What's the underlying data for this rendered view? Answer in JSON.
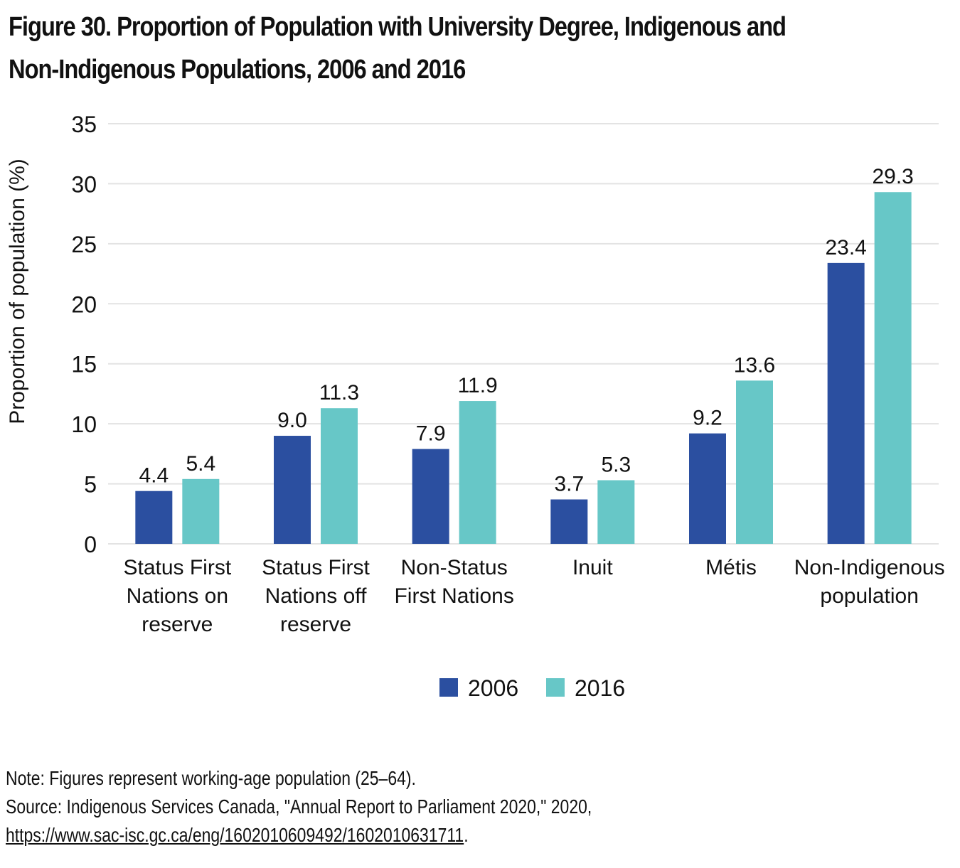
{
  "title": {
    "line1": "Figure 30. Proportion of Population with University Degree, Indigenous and",
    "line2": "Non-Indigenous Populations, 2006 and 2016"
  },
  "notes": {
    "note": "Note: Figures represent working-age population (25–64).",
    "source": "Source: Indigenous Services Canada, \"Annual Report to Parliament 2020,\" 2020,",
    "link": "https://www.sac-isc.gc.ca/eng/1602010609492/1602010631711",
    "link_suffix": "."
  },
  "colors": {
    "series_2006": "#2b4fa0",
    "series_2016": "#67c7c7",
    "grid": "#e3e3e3"
  },
  "chart_data": {
    "type": "bar",
    "title": "Figure 30. Proportion of Population with University Degree, Indigenous and Non-Indigenous Populations, 2006 and 2016",
    "xlabel": "",
    "ylabel": "Proportion of population (%)",
    "ylim": [
      0,
      35
    ],
    "yticks": [
      0,
      5,
      10,
      15,
      20,
      25,
      30,
      35
    ],
    "grid": true,
    "legend_position": "bottom-center",
    "categories": [
      [
        "Status First",
        "Nations on",
        "reserve"
      ],
      [
        "Status First",
        "Nations off",
        "reserve"
      ],
      [
        "Non-Status",
        "First Nations"
      ],
      [
        "Inuit"
      ],
      [
        "Métis"
      ],
      [
        "Non-Indigenous",
        "population"
      ]
    ],
    "series": [
      {
        "name": "2006",
        "values": [
          4.4,
          9.0,
          7.9,
          3.7,
          9.2,
          23.4
        ],
        "labels": [
          "4.4",
          "9.0",
          "7.9",
          "3.7",
          "9.2",
          "23.4"
        ]
      },
      {
        "name": "2016",
        "values": [
          5.4,
          11.3,
          11.9,
          5.3,
          13.6,
          29.3
        ],
        "labels": [
          "5.4",
          "11.3",
          "11.9",
          "5.3",
          "13.6",
          "29.3"
        ]
      }
    ]
  }
}
